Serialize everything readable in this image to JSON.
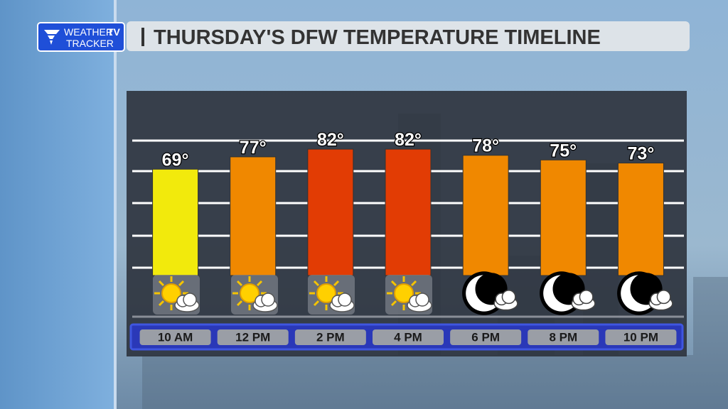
{
  "logo": {
    "line1": "WEATHER",
    "badge": "TV",
    "line2": "TRACKER"
  },
  "chart_data": {
    "type": "bar",
    "title": "THURSDAY'S DFW TEMPERATURE TIMELINE",
    "categories": [
      "10 AM",
      "12 PM",
      "2 PM",
      "4 PM",
      "6 PM",
      "8 PM",
      "10 PM"
    ],
    "values": [
      69,
      77,
      82,
      82,
      78,
      75,
      73
    ],
    "value_labels": [
      "69°",
      "77°",
      "82°",
      "82°",
      "78°",
      "75°",
      "73°"
    ],
    "colors": [
      "#f2ea0c",
      "#f08800",
      "#e23c04",
      "#e23c04",
      "#f08800",
      "#f08800",
      "#f08800"
    ],
    "ylim": [
      0,
      100
    ]
  }
}
